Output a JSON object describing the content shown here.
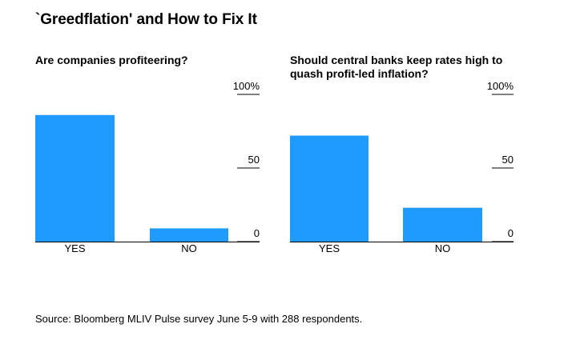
{
  "title": "`Greedflation' and How to Fix It",
  "source": "Source: Bloomberg MLIV Pulse survey June 5-9 with 288 respondents.",
  "colors": {
    "bar": "#1f9bff",
    "axis": "#000000"
  },
  "chart_data": [
    {
      "type": "bar",
      "title": "Are companies profiteering?",
      "categories": [
        "YES",
        "NO"
      ],
      "values": [
        86,
        9
      ],
      "ylim": [
        0,
        100
      ],
      "yticks": [
        0,
        50,
        100
      ],
      "ytick_labels": [
        "0",
        "50",
        "100%"
      ]
    },
    {
      "type": "bar",
      "title": "Should central banks keep rates high to quash profit-led inflation?",
      "categories": [
        "YES",
        "NO"
      ],
      "values": [
        72,
        23
      ],
      "ylim": [
        0,
        100
      ],
      "yticks": [
        0,
        50,
        100
      ],
      "ytick_labels": [
        "0",
        "50",
        "100%"
      ]
    }
  ]
}
